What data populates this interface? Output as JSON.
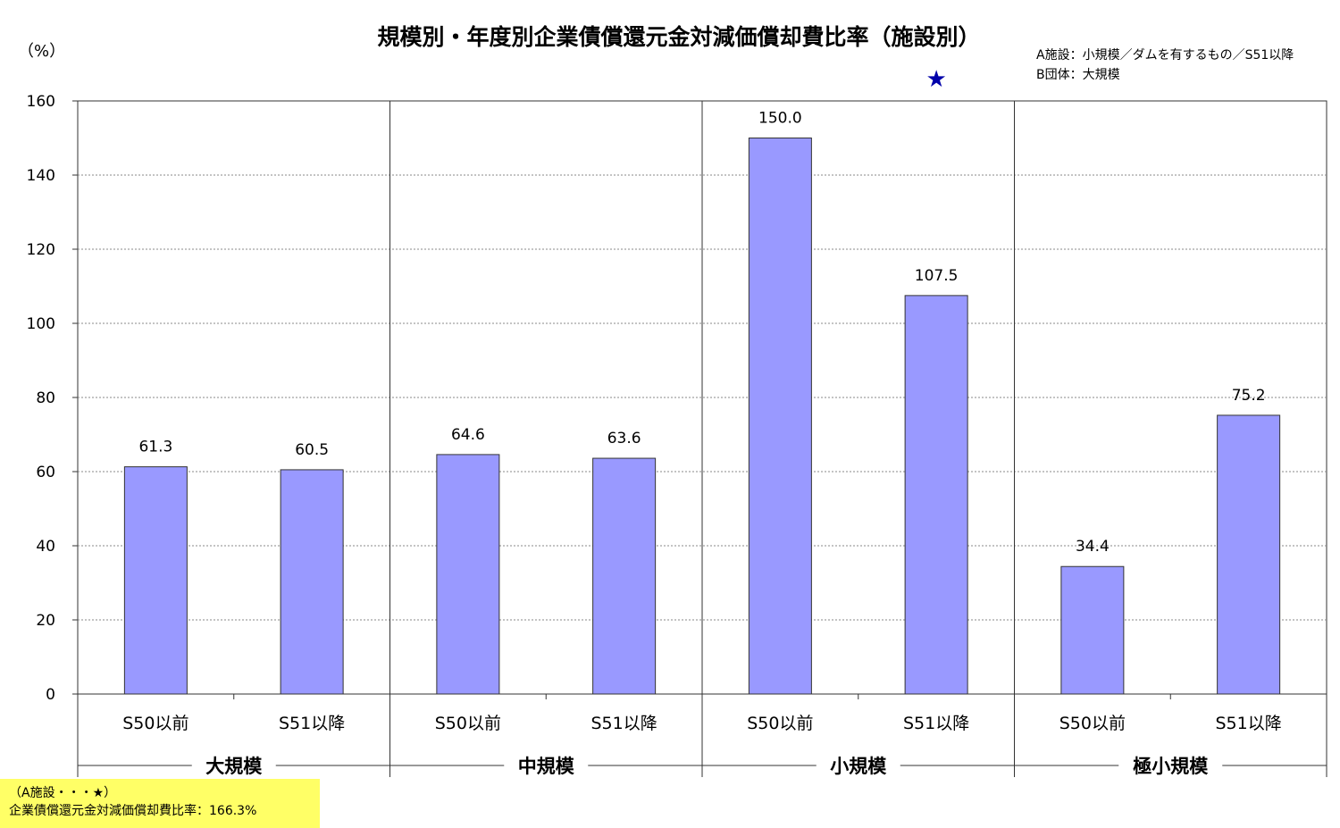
{
  "chart_data": {
    "type": "bar",
    "title": "規模別・年度別企業債償還元金対減価償却費比率（施設別）",
    "ylabel": "（%）",
    "ylim": [
      0,
      160
    ],
    "yticks": [
      0,
      20,
      40,
      60,
      80,
      100,
      120,
      140,
      160
    ],
    "grid": true,
    "groups": [
      {
        "name": "大規模",
        "bars": [
          {
            "label": "S50以前",
            "value": 61.3,
            "value_label": "61.3"
          },
          {
            "label": "S51以降",
            "value": 60.5,
            "value_label": "60.5"
          }
        ]
      },
      {
        "name": "中規模",
        "bars": [
          {
            "label": "S50以前",
            "value": 64.6,
            "value_label": "64.6"
          },
          {
            "label": "S51以降",
            "value": 63.6,
            "value_label": "63.6"
          }
        ]
      },
      {
        "name": "小規模",
        "bars": [
          {
            "label": "S50以前",
            "value": 150.0,
            "value_label": "150.0"
          },
          {
            "label": "S51以降",
            "value": 107.5,
            "value_label": "107.5"
          }
        ]
      },
      {
        "name": "極小規模",
        "bars": [
          {
            "label": "S50以前",
            "value": 34.4,
            "value_label": "34.4"
          },
          {
            "label": "S51以降",
            "value": 75.2,
            "value_label": "75.2"
          }
        ]
      }
    ],
    "marker": {
      "symbol": "★",
      "group_index": 2,
      "bar_index": 1,
      "value": 166.3,
      "color": "#0000aa"
    },
    "bar_color": "#9999ff",
    "annotations": {
      "line1": "A施設：小規模／ダムを有するもの／S51以降",
      "line2": "B団体：大規模"
    }
  },
  "note": {
    "line1": "（A施設・・・★）",
    "line2": "企業債償還元金対減価償却費比率：166.3%"
  }
}
